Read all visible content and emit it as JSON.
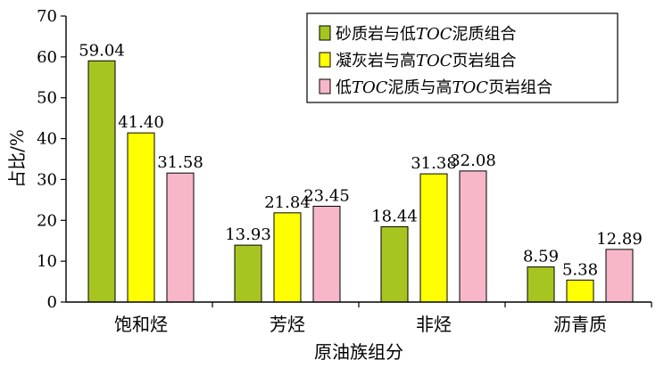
{
  "chart_data": {
    "type": "bar",
    "categories": [
      "饱和烃",
      "芳烃",
      "非烃",
      "沥青质"
    ],
    "series": [
      {
        "name": "砂质岩与低TOC泥质组合",
        "name_parts": [
          "砂质岩与低",
          "TOC",
          "泥质组合"
        ],
        "color": "#a7c520",
        "values": [
          59.04,
          13.93,
          18.44,
          8.59
        ]
      },
      {
        "name": "凝灰岩与高TOC页岩组合",
        "name_parts": [
          "凝灰岩与高",
          "TOC",
          "页岩组合"
        ],
        "color": "#ffff00",
        "values": [
          41.4,
          21.84,
          31.38,
          5.38
        ]
      },
      {
        "name": "低TOC泥质与高TOC页岩组合",
        "name_parts": [
          "低",
          "TOC",
          "泥质与高",
          "TOC",
          "页岩组合"
        ],
        "color": "#f7b7c9",
        "values": [
          31.58,
          23.45,
          32.08,
          12.89
        ]
      }
    ],
    "xlabel": "原油族组分",
    "ylabel": "占比/%",
    "ylim": [
      0,
      70
    ],
    "yticks": [
      0,
      10,
      20,
      30,
      40,
      50,
      60,
      70
    ],
    "grid": false,
    "legend_position": "top-right"
  }
}
